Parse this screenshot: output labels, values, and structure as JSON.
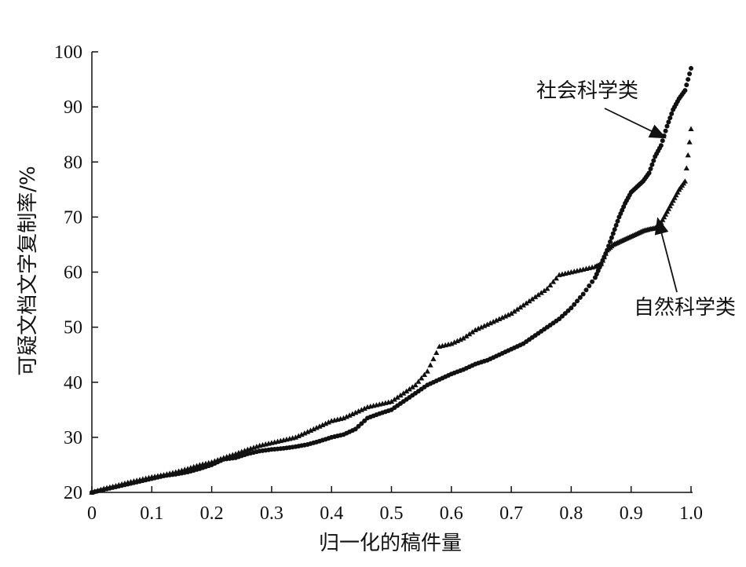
{
  "chart_data": {
    "type": "scatter",
    "title": "",
    "xlabel": "归一化的稿件量",
    "ylabel": "可疑文档文字复制率/%",
    "xlim": [
      0,
      1.0
    ],
    "ylim": [
      20,
      100
    ],
    "xticks": [
      0,
      0.1,
      0.2,
      0.3,
      0.4,
      0.5,
      0.6,
      0.7,
      0.8,
      0.9,
      1.0
    ],
    "xtick_labels": [
      "0",
      "0.1",
      "0.2",
      "0.3",
      "0.4",
      "0.5",
      "0.6",
      "0.7",
      "0.8",
      "0.9",
      "1.0"
    ],
    "yticks": [
      20,
      30,
      40,
      50,
      60,
      70,
      80,
      90,
      100
    ],
    "ytick_labels": [
      "20",
      "30",
      "40",
      "50",
      "60",
      "70",
      "80",
      "90",
      "100"
    ],
    "grid": false,
    "legend": "none",
    "series": [
      {
        "name": "社会科学类",
        "marker": "circle",
        "x": [
          0.0,
          0.02,
          0.04,
          0.06,
          0.08,
          0.1,
          0.12,
          0.14,
          0.16,
          0.18,
          0.2,
          0.22,
          0.24,
          0.26,
          0.28,
          0.3,
          0.32,
          0.34,
          0.36,
          0.38,
          0.4,
          0.42,
          0.44,
          0.46,
          0.48,
          0.5,
          0.52,
          0.54,
          0.56,
          0.58,
          0.6,
          0.62,
          0.64,
          0.66,
          0.68,
          0.7,
          0.72,
          0.74,
          0.76,
          0.78,
          0.8,
          0.82,
          0.84,
          0.85,
          0.86,
          0.87,
          0.88,
          0.89,
          0.9,
          0.91,
          0.92,
          0.93,
          0.94,
          0.95,
          0.96,
          0.97,
          0.98,
          0.99,
          1.0
        ],
        "y": [
          20.0,
          20.5,
          21.0,
          21.5,
          22.0,
          22.5,
          23.0,
          23.3,
          23.7,
          24.3,
          25.0,
          26.0,
          26.3,
          27.0,
          27.5,
          27.8,
          28.0,
          28.3,
          28.7,
          29.3,
          30.0,
          30.5,
          31.5,
          33.5,
          34.3,
          35.0,
          36.5,
          38.0,
          39.5,
          40.5,
          41.5,
          42.3,
          43.3,
          44.0,
          45.0,
          46.0,
          47.0,
          48.5,
          50.0,
          51.5,
          53.5,
          56.0,
          59.0,
          61.5,
          64.0,
          67.0,
          70.0,
          72.5,
          74.5,
          75.5,
          76.5,
          78.0,
          81.0,
          83.0,
          86.5,
          89.5,
          91.5,
          93.0,
          97.0
        ]
      },
      {
        "name": "自然科学类",
        "marker": "triangle",
        "x": [
          0.0,
          0.02,
          0.04,
          0.06,
          0.08,
          0.1,
          0.12,
          0.14,
          0.16,
          0.18,
          0.2,
          0.22,
          0.24,
          0.26,
          0.28,
          0.3,
          0.32,
          0.34,
          0.36,
          0.38,
          0.4,
          0.42,
          0.44,
          0.46,
          0.48,
          0.5,
          0.52,
          0.54,
          0.56,
          0.58,
          0.6,
          0.62,
          0.64,
          0.66,
          0.68,
          0.7,
          0.72,
          0.74,
          0.76,
          0.78,
          0.8,
          0.82,
          0.84,
          0.85,
          0.86,
          0.87,
          0.88,
          0.89,
          0.9,
          0.91,
          0.92,
          0.93,
          0.94,
          0.95,
          0.96,
          0.97,
          0.98,
          0.99,
          1.0
        ],
        "y": [
          20.0,
          20.7,
          21.2,
          21.8,
          22.3,
          22.8,
          23.2,
          23.7,
          24.3,
          25.0,
          25.5,
          26.3,
          27.0,
          27.8,
          28.5,
          29.0,
          29.5,
          30.0,
          31.0,
          32.0,
          33.0,
          33.5,
          34.5,
          35.5,
          36.0,
          36.5,
          38.0,
          39.5,
          42.0,
          46.5,
          47.0,
          48.0,
          49.5,
          50.5,
          51.5,
          52.5,
          54.0,
          55.5,
          57.0,
          59.5,
          60.0,
          60.5,
          61.0,
          61.5,
          64.0,
          65.0,
          65.5,
          66.0,
          66.5,
          67.0,
          67.5,
          67.8,
          68.0,
          69.0,
          71.0,
          73.0,
          75.0,
          76.5,
          86.0
        ]
      }
    ],
    "annotations": [
      {
        "text": "社会科学类",
        "arrow_to": {
          "x": 0.955,
          "y": 84.5
        }
      },
      {
        "text": "自然科学类",
        "arrow_to": {
          "x": 0.945,
          "y": 69.5
        }
      }
    ]
  }
}
